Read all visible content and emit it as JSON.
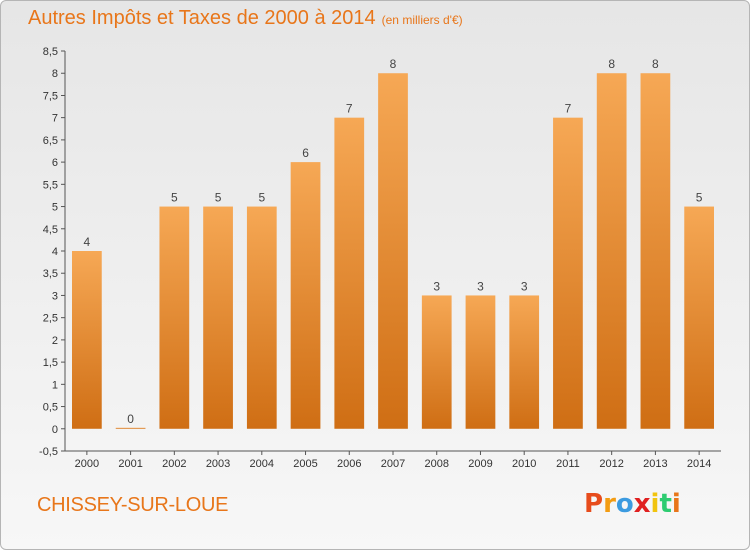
{
  "header": {
    "title": "Autres Impôts et Taxes de 2000 à 2014",
    "unit": "(en milliers d'€)"
  },
  "footer": {
    "town": "CHISSEY-SUR-LOUE",
    "logo": [
      "P",
      "r",
      "o",
      "x",
      "i",
      "t",
      "i"
    ],
    "logo_colors": [
      "#e74c1c",
      "#f39c12",
      "#3c9be0",
      "#e02020",
      "#f1c40f",
      "#2ecc71",
      "#e8761a"
    ]
  },
  "colors": {
    "bar_top": "#f6a855",
    "bar_bottom": "#cf6e14",
    "accent": "#e8761a"
  },
  "chart_data": {
    "type": "bar",
    "title": "Autres Impôts et Taxes de 2000 à 2014",
    "subtitle": "(en milliers d'€)",
    "xlabel": "",
    "ylabel": "",
    "categories": [
      "2000",
      "2001",
      "2002",
      "2003",
      "2004",
      "2005",
      "2006",
      "2007",
      "2008",
      "2009",
      "2010",
      "2011",
      "2012",
      "2013",
      "2014"
    ],
    "values": [
      4,
      0,
      5,
      5,
      5,
      6,
      7,
      8,
      3,
      3,
      3,
      7,
      8,
      8,
      5
    ],
    "data_labels": [
      "4",
      "0",
      "5",
      "5",
      "5",
      "6",
      "7",
      "8",
      "3",
      "3",
      "3",
      "7",
      "8",
      "8",
      "5"
    ],
    "ylim": [
      -0.5,
      8.5
    ],
    "yticks": [
      "-0,5",
      "0",
      "0,5",
      "1",
      "1,5",
      "2",
      "2,5",
      "3",
      "3,5",
      "4",
      "4,5",
      "5",
      "5,5",
      "6",
      "6,5",
      "7",
      "7,5",
      "8",
      "8,5"
    ],
    "grid": false,
    "legend": "none"
  }
}
